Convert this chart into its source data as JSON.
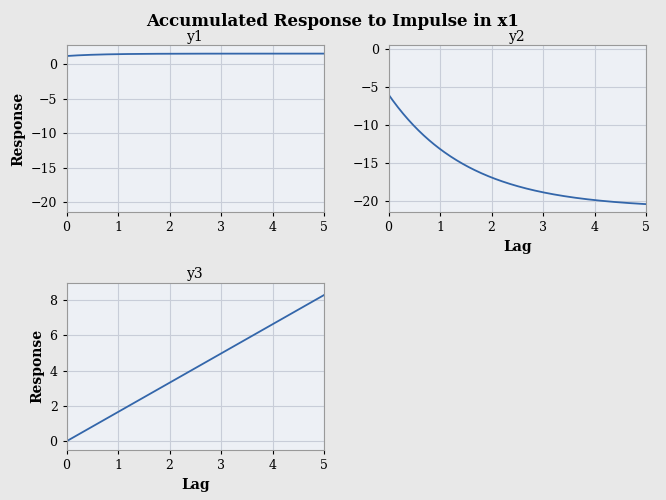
{
  "title": "Accumulated Response to Impulse in x1",
  "title_fontsize": 12,
  "title_fontweight": "bold",
  "background_color": "#e8e8e8",
  "plot_bg_color": "#edf0f5",
  "line_color": "#3366aa",
  "line_width": 1.3,
  "grid_color": "#c8cdd8",
  "spine_color": "#999999",
  "subplots": [
    {
      "label": "y1",
      "xlabel": "",
      "ylabel": "Response",
      "xlim": [
        0,
        5
      ],
      "ylim": [
        -21.5,
        2.8
      ],
      "yticks": [
        0,
        -5,
        -10,
        -15,
        -20
      ],
      "xticks": [
        0,
        1,
        2,
        3,
        4,
        5
      ],
      "y_func": "flat_positive"
    },
    {
      "label": "y2",
      "xlabel": "Lag",
      "ylabel": "",
      "xlim": [
        0,
        5
      ],
      "ylim": [
        -21.5,
        0.5
      ],
      "yticks": [],
      "xticks": [
        0,
        1,
        2,
        3,
        4,
        5
      ],
      "y_func": "decreasing_curve"
    },
    {
      "label": "y3",
      "xlabel": "Lag",
      "ylabel": "Response",
      "xlim": [
        0,
        5
      ],
      "ylim": [
        -0.5,
        9.0
      ],
      "yticks": [
        0,
        2,
        4,
        6,
        8
      ],
      "xticks": [
        0,
        1,
        2,
        3,
        4,
        5
      ],
      "y_func": "linear_increase"
    }
  ]
}
